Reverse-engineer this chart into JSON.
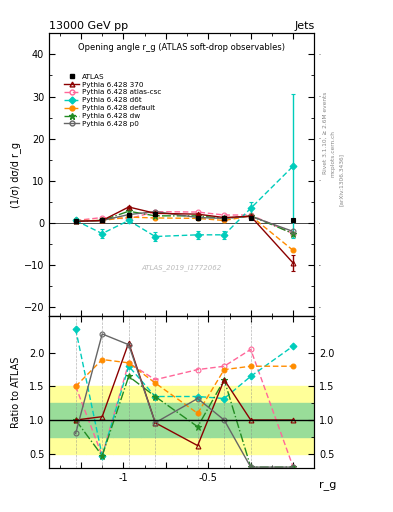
{
  "title": "13000 GeV pp",
  "title_right": "Jets",
  "plot_title": "Opening angle r_g (ATLAS soft-drop observables)",
  "ylabel_main": "(1/σ) dσ/d r_g",
  "ylabel_ratio": "Ratio to ATLAS",
  "xlabel": "r_g",
  "rivet_label": "Rivet 3.1.10, ≥ 2.6M events",
  "arxiv_label": "[arXiv:1306.3436]",
  "atlas_label": "ATLAS_2019_I1772062",
  "mcplots_label": "mcplots.cern.ch",
  "main_ylim": [
    -22,
    45
  ],
  "ratio_ylim": [
    0.28,
    2.55
  ],
  "ratio_yticks": [
    0.5,
    1.0,
    1.5,
    2.0
  ],
  "x_values": [
    -1.225,
    -1.1,
    -0.975,
    -0.85,
    -0.65,
    -0.525,
    -0.4,
    -0.2
  ],
  "atlas_y": [
    0.4,
    0.6,
    1.8,
    2.1,
    1.3,
    1.1,
    1.1,
    0.6
  ],
  "atlas_yerr": [
    0.3,
    0.3,
    0.35,
    0.35,
    0.3,
    0.25,
    0.25,
    0.2
  ],
  "p370_y": [
    0.4,
    0.6,
    3.8,
    2.3,
    2.1,
    1.3,
    1.6,
    -9.5
  ],
  "p370_yerr": [
    0.2,
    0.2,
    0.35,
    0.35,
    0.25,
    0.25,
    0.25,
    1.8
  ],
  "pcsc_y": [
    0.6,
    1.3,
    1.0,
    2.7,
    2.6,
    1.9,
    1.9,
    -2.5
  ],
  "pd6t_y": [
    0.6,
    -2.5,
    0.6,
    -3.2,
    -2.8,
    -2.8,
    3.5,
    13.5
  ],
  "pd6t_yerr": [
    0.4,
    1.0,
    0.6,
    1.0,
    1.0,
    1.0,
    1.5,
    17.0
  ],
  "pdef_y": [
    0.6,
    0.6,
    1.4,
    1.2,
    1.1,
    0.6,
    1.7,
    -6.5
  ],
  "pdw_y": [
    0.4,
    0.6,
    2.8,
    1.7,
    1.7,
    1.1,
    1.7,
    -2.5
  ],
  "pp0_y": [
    0.4,
    0.6,
    2.0,
    2.7,
    1.3,
    1.1,
    1.6,
    -2.0
  ],
  "r370_v": [
    1.0,
    1.05,
    2.15,
    0.96,
    0.62,
    1.6,
    1.0,
    1.0
  ],
  "rcsc_v": [
    1.5,
    0.47,
    1.85,
    1.6,
    1.75,
    1.8,
    2.05,
    0.3
  ],
  "rd6t_v": [
    2.35,
    0.47,
    1.8,
    1.35,
    1.35,
    1.32,
    1.65,
    2.1
  ],
  "rdef_v": [
    1.5,
    1.9,
    1.85,
    1.55,
    1.1,
    1.75,
    1.8,
    1.8
  ],
  "rdw_v": [
    1.0,
    0.47,
    1.65,
    1.35,
    0.9,
    1.6,
    0.3,
    0.3
  ],
  "rp0_v": [
    0.8,
    2.28,
    2.12,
    0.96,
    1.32,
    1.0,
    0.3,
    0.3
  ],
  "color_370": "#8b0000",
  "color_atlas_csc": "#ff6699",
  "color_d6t": "#00ccbb",
  "color_default": "#ff8c00",
  "color_dw": "#228b22",
  "color_p0": "#666666",
  "band_yellow": "#ffff99",
  "band_green": "#99dd99",
  "ratio_band_yellow_lo": 0.5,
  "ratio_band_yellow_hi": 1.5,
  "ratio_band_green_lo": 0.75,
  "ratio_band_green_hi": 1.25
}
